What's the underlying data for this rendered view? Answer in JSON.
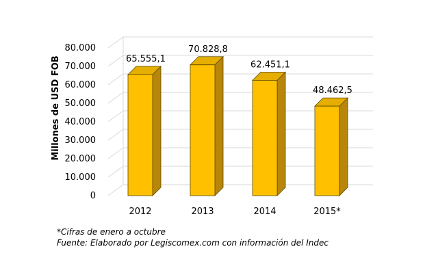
{
  "chart_data": {
    "type": "bar",
    "style": "3d-column",
    "categories": [
      "2012",
      "2013",
      "2014",
      "2015*"
    ],
    "values": [
      65555.1,
      70828.8,
      62451.1,
      48462.5
    ],
    "data_labels": [
      "65.555,1",
      "70.828,8",
      "62.451,1",
      "48.462,5"
    ],
    "ylabel": "Millones de USD FOB",
    "ylim": [
      0,
      80000
    ],
    "yticks": [
      0,
      10000,
      20000,
      30000,
      40000,
      50000,
      60000,
      70000,
      80000
    ],
    "ytick_labels": [
      "0",
      "10.000",
      "20.000",
      "30.000",
      "40.000",
      "50.000",
      "60.000",
      "70.000",
      "80.000"
    ],
    "grid": true,
    "colors": {
      "bar_front": "#FFC000",
      "bar_side": "#B8860B",
      "bar_top": "#E5AE00",
      "bar_outline": "#5A4A00",
      "grid": "#D9D9D9"
    }
  },
  "notes": [
    "*Cifras de enero a octubre",
    "Fuente: Elaborado por Legiscomex.com con información del Indec"
  ]
}
